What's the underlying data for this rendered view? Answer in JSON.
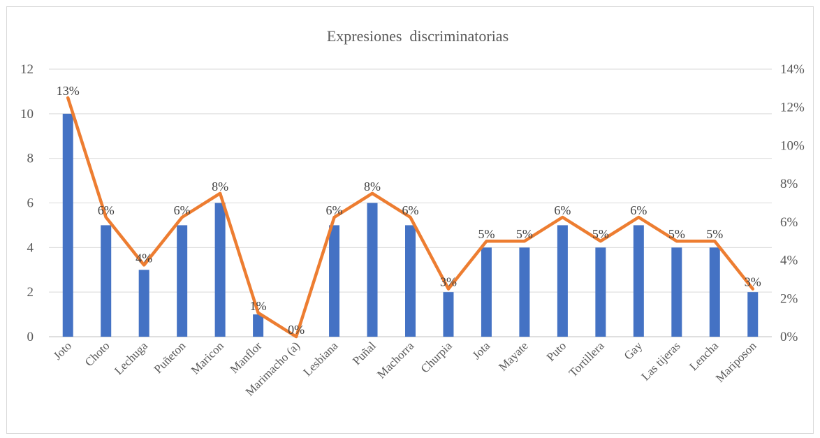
{
  "chart_data": {
    "type": "bar",
    "title": "Expresiones  discriminatorias",
    "categories": [
      "Joto",
      "Choto",
      "Lechuga",
      "Puñeton",
      "Maricon",
      "Manflor",
      "Marimacho (a)",
      "Lesbiana",
      "Puñal",
      "Machorra",
      "Churpia",
      "Jota",
      "Mayate",
      "Puto",
      "Tortillera",
      "Gay",
      "Las tijeras",
      "Lencha",
      "Mariposon"
    ],
    "series": [
      {
        "type": "bar",
        "axis": "left",
        "color": "#4472c4",
        "values": [
          10,
          5,
          3,
          5,
          6,
          1,
          0,
          5,
          6,
          5,
          2,
          4,
          4,
          5,
          4,
          5,
          4,
          4,
          2
        ]
      },
      {
        "type": "line",
        "axis": "right",
        "color": "#ed7d31",
        "values": [
          12.5,
          6.25,
          3.75,
          6.25,
          7.5,
          1.25,
          0,
          6.25,
          7.5,
          6.25,
          2.5,
          5,
          5,
          6.25,
          5,
          6.25,
          5,
          5,
          2.5
        ],
        "labels": [
          "13%",
          "6%",
          "4%",
          "6%",
          "8%",
          "1%",
          "0%",
          "6%",
          "8%",
          "6%",
          "3%",
          "5%",
          "5%",
          "6%",
          "5%",
          "6%",
          "5%",
          "5%",
          "3%"
        ]
      }
    ],
    "y_left": {
      "min": 0,
      "max": 12,
      "ticks": [
        "0",
        "2",
        "4",
        "6",
        "8",
        "10",
        "12"
      ]
    },
    "y_right": {
      "min": 0,
      "max": 14,
      "ticks": [
        "0%",
        "2%",
        "4%",
        "6%",
        "8%",
        "10%",
        "12%",
        "14%"
      ]
    },
    "grid": true,
    "legend": "none"
  }
}
